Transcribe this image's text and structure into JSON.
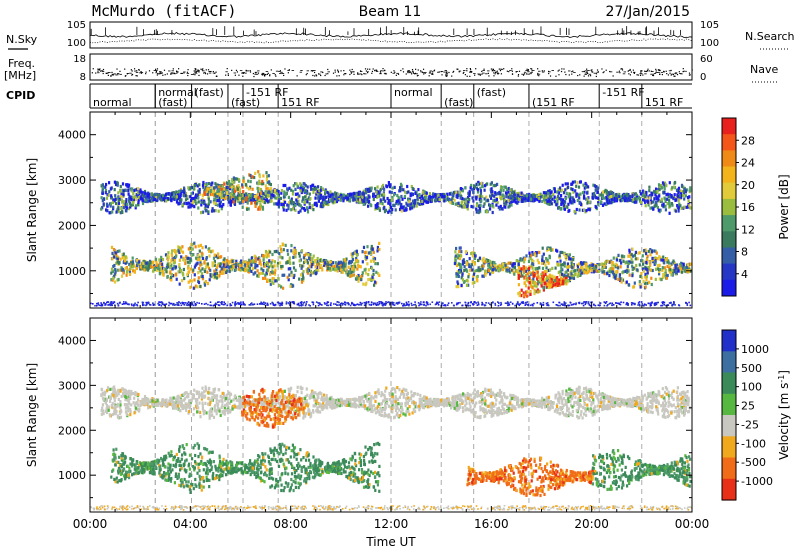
{
  "header": {
    "radar": "McMurdo (fitACF)",
    "beam": "Beam 11",
    "date": "27/Jan/2015"
  },
  "left_labels": {
    "nsky": "N.Sky",
    "freq_top": "Freq.",
    "freq_unit": "[MHz]",
    "cpid": "CPID"
  },
  "right_labels": {
    "nsearch": "N.Search",
    "nave": "Nave"
  },
  "noise_panel": {
    "ticks_left": [
      "10^5",
      "10^0"
    ],
    "ticks_right": [
      "10^5",
      "10^0"
    ]
  },
  "freq_panel": {
    "ticks_left": [
      "18",
      "8"
    ],
    "ticks_right": [
      "60",
      "0"
    ]
  },
  "cpid_segments": [
    {
      "label": "normal",
      "hour": 0.0
    },
    {
      "label": "normal",
      "hour": 2.6
    },
    {
      "label": "(fast)",
      "hour": 2.6
    },
    {
      "label": "(fast)",
      "hour": 4.05
    },
    {
      "label": "(fast)",
      "hour": 5.5
    },
    {
      "label": "-151 RF",
      "hour": 6.1
    },
    {
      "label": "151 RF",
      "hour": 7.5
    },
    {
      "label": "normal",
      "hour": 12.0
    },
    {
      "label": "(fast)",
      "hour": 14.0
    },
    {
      "label": "(fast)",
      "hour": 15.3
    },
    {
      "label": "(151 RF",
      "hour": 17.5
    },
    {
      "label": "-151 RF",
      "hour": 20.3
    },
    {
      "label": "151 RF",
      "hour": 22.0
    }
  ],
  "chart_data": [
    {
      "type": "heatmap",
      "name_panel": "power",
      "ylabel": "Slant Range [km]",
      "xlabel": "Time UT",
      "x_ticks": [
        "00:00",
        "04:00",
        "08:00",
        "12:00",
        "16:00",
        "20:00",
        "00:00"
      ],
      "xlim_hours": [
        0,
        24
      ],
      "ylim": [
        180,
        4500
      ],
      "y_ticks": [
        1000,
        2000,
        3000,
        4000
      ],
      "colorbar_label": "Power [dB]",
      "colorbar_ticks": [
        "28",
        "24",
        "20",
        "16",
        "12",
        "8",
        "4"
      ],
      "colorbar_colors": [
        "#e8201e",
        "#f4561a",
        "#f08a17",
        "#f2b41a",
        "#e2cb3a",
        "#9bbd3f",
        "#4f9a6a",
        "#3a7a5e",
        "#345ea6",
        "#2637c6",
        "#1c1ce8"
      ],
      "bands": [
        {
          "t0": 0.4,
          "t1": 23.9,
          "r_center": 2650,
          "r_width": 350,
          "level": 0.25
        },
        {
          "t0": 0.8,
          "t1": 11.5,
          "r_center": 1150,
          "r_width": 500,
          "level": 0.5
        },
        {
          "t0": 14.5,
          "t1": 23.9,
          "r_center": 1100,
          "r_width": 450,
          "level": 0.45
        },
        {
          "t0": 4.5,
          "t1": 7.2,
          "r_center": 2800,
          "r_width": 450,
          "level": 0.55
        },
        {
          "t0": 17.0,
          "t1": 19.0,
          "r_center": 800,
          "r_width": 350,
          "level": 0.8
        }
      ]
    },
    {
      "type": "heatmap",
      "name_panel": "velocity",
      "ylabel": "Slant Range [km]",
      "xlabel": "Time UT",
      "x_ticks": [
        "00:00",
        "04:00",
        "08:00",
        "12:00",
        "16:00",
        "20:00",
        "00:00"
      ],
      "xlim_hours": [
        0,
        24
      ],
      "ylim": [
        180,
        4500
      ],
      "y_ticks": [
        1000,
        2000,
        3000,
        4000
      ],
      "colorbar_label": "Velocity [m s^-1]",
      "colorbar_ticks": [
        "1000",
        "500",
        "100",
        "25",
        "-25",
        "-100",
        "-500",
        "-1000"
      ],
      "colorbar_colors": [
        "#2030c8",
        "#3d70a0",
        "#3a8a5a",
        "#56b840",
        "#c8c8c0",
        "#f0a81c",
        "#f06c18",
        "#e83018"
      ],
      "bands": [
        {
          "t0": 0.4,
          "t1": 23.9,
          "r_center": 2650,
          "r_width": 350,
          "class": "grey"
        },
        {
          "t0": 0.8,
          "t1": 11.5,
          "r_center": 1200,
          "r_width": 550,
          "class": "green"
        },
        {
          "t0": 6.0,
          "t1": 8.5,
          "r_center": 2550,
          "r_width": 450,
          "class": "orange"
        },
        {
          "t0": 15.0,
          "t1": 20.0,
          "r_center": 1000,
          "r_width": 450,
          "class": "orange"
        },
        {
          "t0": 20.0,
          "t1": 23.9,
          "r_center": 1150,
          "r_width": 450,
          "class": "green"
        }
      ]
    }
  ],
  "colors": {
    "frame": "#000000",
    "dash": "#888888",
    "ground_scatter": "#bfbfbf"
  }
}
